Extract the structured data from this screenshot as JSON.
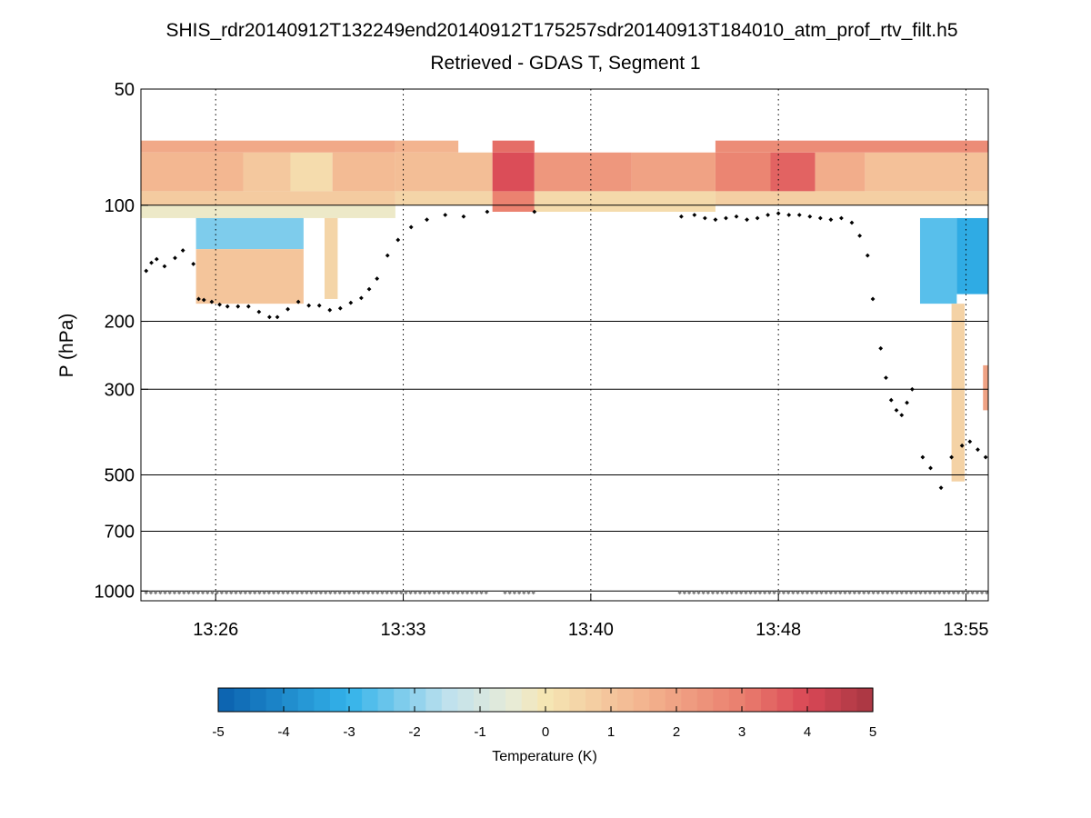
{
  "chart_data": {
    "type": "heatmap",
    "title": "SHIS_rdr20140912T132249end20140912T175257sdr20140913T184010_atm_prof_rtv_filt.h5",
    "subtitle": "Retrieved - GDAS T, Segment 1",
    "xlabel": "",
    "ylabel": "P (hPa)",
    "x_unit": "minutes since 13:00",
    "x_range": [
      23.3,
      55.6
    ],
    "y_scale": "log",
    "y_range_hPa": [
      50,
      1060
    ],
    "y_reversed": true,
    "x_ticks": [
      {
        "value": 26.15,
        "label": "13:26"
      },
      {
        "value": 33.3,
        "label": "13:33"
      },
      {
        "value": 40.45,
        "label": "13:40"
      },
      {
        "value": 47.6,
        "label": "13:48"
      },
      {
        "value": 54.75,
        "label": "13:55"
      }
    ],
    "y_ticks": [
      {
        "value": 50,
        "label": "50"
      },
      {
        "value": 100,
        "label": "100"
      },
      {
        "value": 200,
        "label": "200"
      },
      {
        "value": 300,
        "label": "300"
      },
      {
        "value": 500,
        "label": "500"
      },
      {
        "value": 700,
        "label": "700"
      },
      {
        "value": 1000,
        "label": "1000"
      }
    ],
    "grid": "horizontal solid lines at y ticks, vertical dotted lines at x ticks",
    "colorbar": {
      "label": "Temperature (K)",
      "range": [
        -5,
        5
      ],
      "ticks": [
        -5,
        -4,
        -3,
        -2,
        -1,
        0,
        1,
        2,
        3,
        4,
        5
      ],
      "tick_labels": [
        "-5",
        "-4",
        "-3",
        "-2",
        "-1",
        "0",
        "1",
        "2",
        "3",
        "4",
        "5"
      ],
      "colormap_stops": [
        {
          "v": -5,
          "color": "#0a60ad"
        },
        {
          "v": -3,
          "color": "#33b3ea"
        },
        {
          "v": -1.5,
          "color": "#bfe1ee"
        },
        {
          "v": -0.5,
          "color": "#e8ebd6"
        },
        {
          "v": 0,
          "color": "#f5e6b4"
        },
        {
          "v": 1.5,
          "color": "#f3b48f"
        },
        {
          "v": 3,
          "color": "#ea7e6e"
        },
        {
          "v": 4,
          "color": "#d94856"
        },
        {
          "v": 5,
          "color": "#a73642"
        }
      ]
    },
    "colorbar_levels": 41,
    "difference_field_rectangles": [
      {
        "t0": 23.3,
        "t1": 27.2,
        "p0": 73,
        "p1": 92,
        "value": 1.4
      },
      {
        "t0": 27.2,
        "t1": 29.0,
        "p0": 73,
        "p1": 92,
        "value": 0.9
      },
      {
        "t0": 29.0,
        "t1": 30.6,
        "p0": 73,
        "p1": 92,
        "value": 0.3
      },
      {
        "t0": 30.6,
        "t1": 33.0,
        "p0": 73,
        "p1": 92,
        "value": 1.3
      },
      {
        "t0": 33.0,
        "t1": 36.7,
        "p0": 73,
        "p1": 92,
        "value": 1.2
      },
      {
        "t0": 36.7,
        "t1": 38.3,
        "p0": 73,
        "p1": 92,
        "value": 3.9
      },
      {
        "t0": 38.3,
        "t1": 42.0,
        "p0": 73,
        "p1": 92,
        "value": 2.3
      },
      {
        "t0": 42.0,
        "t1": 45.2,
        "p0": 73,
        "p1": 92,
        "value": 2.0
      },
      {
        "t0": 45.2,
        "t1": 47.3,
        "p0": 73,
        "p1": 92,
        "value": 2.8
      },
      {
        "t0": 47.3,
        "t1": 49.0,
        "p0": 73,
        "p1": 92,
        "value": 3.5
      },
      {
        "t0": 49.0,
        "t1": 50.9,
        "p0": 73,
        "p1": 92,
        "value": 1.7
      },
      {
        "t0": 50.9,
        "t1": 55.6,
        "p0": 73,
        "p1": 92,
        "value": 1.1
      },
      {
        "t0": 23.3,
        "t1": 33.0,
        "p0": 68,
        "p1": 73,
        "value": 1.8
      },
      {
        "t0": 33.0,
        "t1": 35.4,
        "p0": 68,
        "p1": 73,
        "value": 1.5
      },
      {
        "t0": 36.7,
        "t1": 38.3,
        "p0": 68,
        "p1": 73,
        "value": 3.3
      },
      {
        "t0": 45.2,
        "t1": 55.6,
        "p0": 68,
        "p1": 73,
        "value": 2.6
      },
      {
        "t0": 23.3,
        "t1": 33.0,
        "p0": 92,
        "p1": 100,
        "value": 0.8
      },
      {
        "t0": 33.0,
        "t1": 36.7,
        "p0": 92,
        "p1": 100,
        "value": 0.5
      },
      {
        "t0": 36.7,
        "t1": 38.3,
        "p0": 92,
        "p1": 104,
        "value": 2.9
      },
      {
        "t0": 38.3,
        "t1": 45.2,
        "p0": 92,
        "p1": 100,
        "value": 0.4
      },
      {
        "t0": 45.2,
        "t1": 55.6,
        "p0": 92,
        "p1": 100,
        "value": 0.7
      },
      {
        "t0": 23.3,
        "t1": 33.0,
        "p0": 100,
        "p1": 108,
        "value": -0.3
      },
      {
        "t0": 38.3,
        "t1": 45.2,
        "p0": 100,
        "p1": 104,
        "value": 0.3
      },
      {
        "t0": 25.4,
        "t1": 29.5,
        "p0": 108,
        "p1": 130,
        "value": -2.2
      },
      {
        "t0": 25.4,
        "t1": 29.5,
        "p0": 130,
        "p1": 180,
        "value": 1.0
      },
      {
        "t0": 30.3,
        "t1": 30.8,
        "p0": 108,
        "p1": 175,
        "value": 0.5
      },
      {
        "t0": 53.0,
        "t1": 54.4,
        "p0": 108,
        "p1": 180,
        "value": -2.6
      },
      {
        "t0": 54.4,
        "t1": 55.6,
        "p0": 108,
        "p1": 170,
        "value": -3.2
      },
      {
        "t0": 54.2,
        "t1": 54.7,
        "p0": 180,
        "p1": 520,
        "value": 0.6
      },
      {
        "t0": 55.4,
        "t1": 55.6,
        "p0": 260,
        "p1": 340,
        "value": 2.0
      }
    ],
    "series": [
      {
        "name": "cloud top pressure (black markers)",
        "points": [
          [
            23.5,
            148
          ],
          [
            23.7,
            141
          ],
          [
            23.9,
            138
          ],
          [
            24.2,
            144
          ],
          [
            24.6,
            137
          ],
          [
            24.9,
            131
          ],
          [
            25.3,
            142
          ],
          [
            25.5,
            175
          ],
          [
            25.7,
            176
          ],
          [
            26.0,
            178
          ],
          [
            26.3,
            181
          ],
          [
            26.6,
            183
          ],
          [
            27.0,
            183
          ],
          [
            27.4,
            183
          ],
          [
            27.8,
            189
          ],
          [
            28.2,
            195
          ],
          [
            28.5,
            195
          ],
          [
            28.9,
            186
          ],
          [
            29.3,
            178
          ],
          [
            29.7,
            182
          ],
          [
            30.1,
            182
          ],
          [
            30.5,
            187
          ],
          [
            30.9,
            185
          ],
          [
            31.3,
            179
          ],
          [
            31.7,
            174
          ],
          [
            32.0,
            165
          ],
          [
            32.3,
            155
          ],
          [
            32.7,
            135
          ],
          [
            33.1,
            123
          ],
          [
            33.6,
            114
          ],
          [
            34.2,
            109
          ],
          [
            34.9,
            106
          ],
          [
            35.6,
            107
          ],
          [
            36.5,
            104
          ],
          [
            38.3,
            104
          ],
          [
            43.9,
            107
          ],
          [
            44.4,
            106
          ],
          [
            44.8,
            108
          ],
          [
            45.2,
            109
          ],
          [
            45.6,
            108
          ],
          [
            46.0,
            107
          ],
          [
            46.4,
            109
          ],
          [
            46.8,
            108
          ],
          [
            47.2,
            106
          ],
          [
            47.6,
            105
          ],
          [
            48.0,
            106
          ],
          [
            48.4,
            106
          ],
          [
            48.8,
            107
          ],
          [
            49.2,
            108
          ],
          [
            49.6,
            109
          ],
          [
            50.0,
            108
          ],
          [
            50.4,
            111
          ],
          [
            50.7,
            120
          ],
          [
            51.0,
            135
          ],
          [
            51.2,
            175
          ],
          [
            51.5,
            235
          ],
          [
            51.7,
            280
          ],
          [
            51.9,
            320
          ],
          [
            52.1,
            340
          ],
          [
            52.3,
            350
          ],
          [
            52.5,
            325
          ],
          [
            52.7,
            300
          ],
          [
            53.1,
            450
          ],
          [
            53.4,
            480
          ],
          [
            53.8,
            540
          ],
          [
            54.2,
            450
          ],
          [
            54.6,
            420
          ],
          [
            54.9,
            410
          ],
          [
            55.2,
            430
          ],
          [
            55.5,
            450
          ]
        ]
      },
      {
        "name": "surface pressure (gray markers)",
        "pressure_hPa": 1010
      }
    ]
  }
}
